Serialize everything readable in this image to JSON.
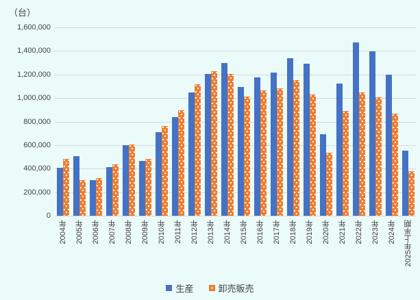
{
  "unit_label": "（台）",
  "colors": {
    "production": "#4472C4",
    "wholesale": "#ED7D31",
    "background": "#EAFBFA",
    "gridline": "#D9D9D9",
    "text": "#404040"
  },
  "legend": {
    "production_label": "生産",
    "wholesale_label": "卸売販売"
  },
  "y_axis": {
    "tick_labels": [
      "0",
      "200,000",
      "400,000",
      "600,000",
      "800,000",
      "1,000,000",
      "1,200,000",
      "1,400,000",
      "1,600,000"
    ]
  },
  "chart_data": {
    "type": "bar",
    "title": "",
    "ylabel": "（台）",
    "ylim": [
      0,
      1600000
    ],
    "ytick_step": 200000,
    "grid": true,
    "legend_position": "bottom",
    "categories": [
      "2004年",
      "2005年",
      "2006年",
      "2007年",
      "2008年",
      "2009年",
      "2010年",
      "2011年",
      "2012年",
      "2013年",
      "2014年",
      "2015年",
      "2016年",
      "2017年",
      "2018年",
      "2019年",
      "2020年",
      "2021年",
      "2022年",
      "2023年",
      "2024年",
      "2025年上半期"
    ],
    "series": [
      {
        "name": "生産",
        "color": "#4472C4",
        "values": [
          410000,
          505000,
          300000,
          415000,
          600000,
          465000,
          710000,
          840000,
          1050000,
          1205000,
          1295000,
          1095000,
          1175000,
          1215000,
          1340000,
          1290000,
          690000,
          1120000,
          1470000,
          1395000,
          1200000,
          555000
        ]
      },
      {
        "name": "卸売販売",
        "color": "#ED7D31",
        "values": [
          485000,
          305000,
          320000,
          435000,
          605000,
          485000,
          765000,
          895000,
          1115000,
          1230000,
          1205000,
          1010000,
          1065000,
          1080000,
          1150000,
          1030000,
          535000,
          890000,
          1045000,
          1005000,
          865000,
          380000
        ]
      }
    ]
  }
}
